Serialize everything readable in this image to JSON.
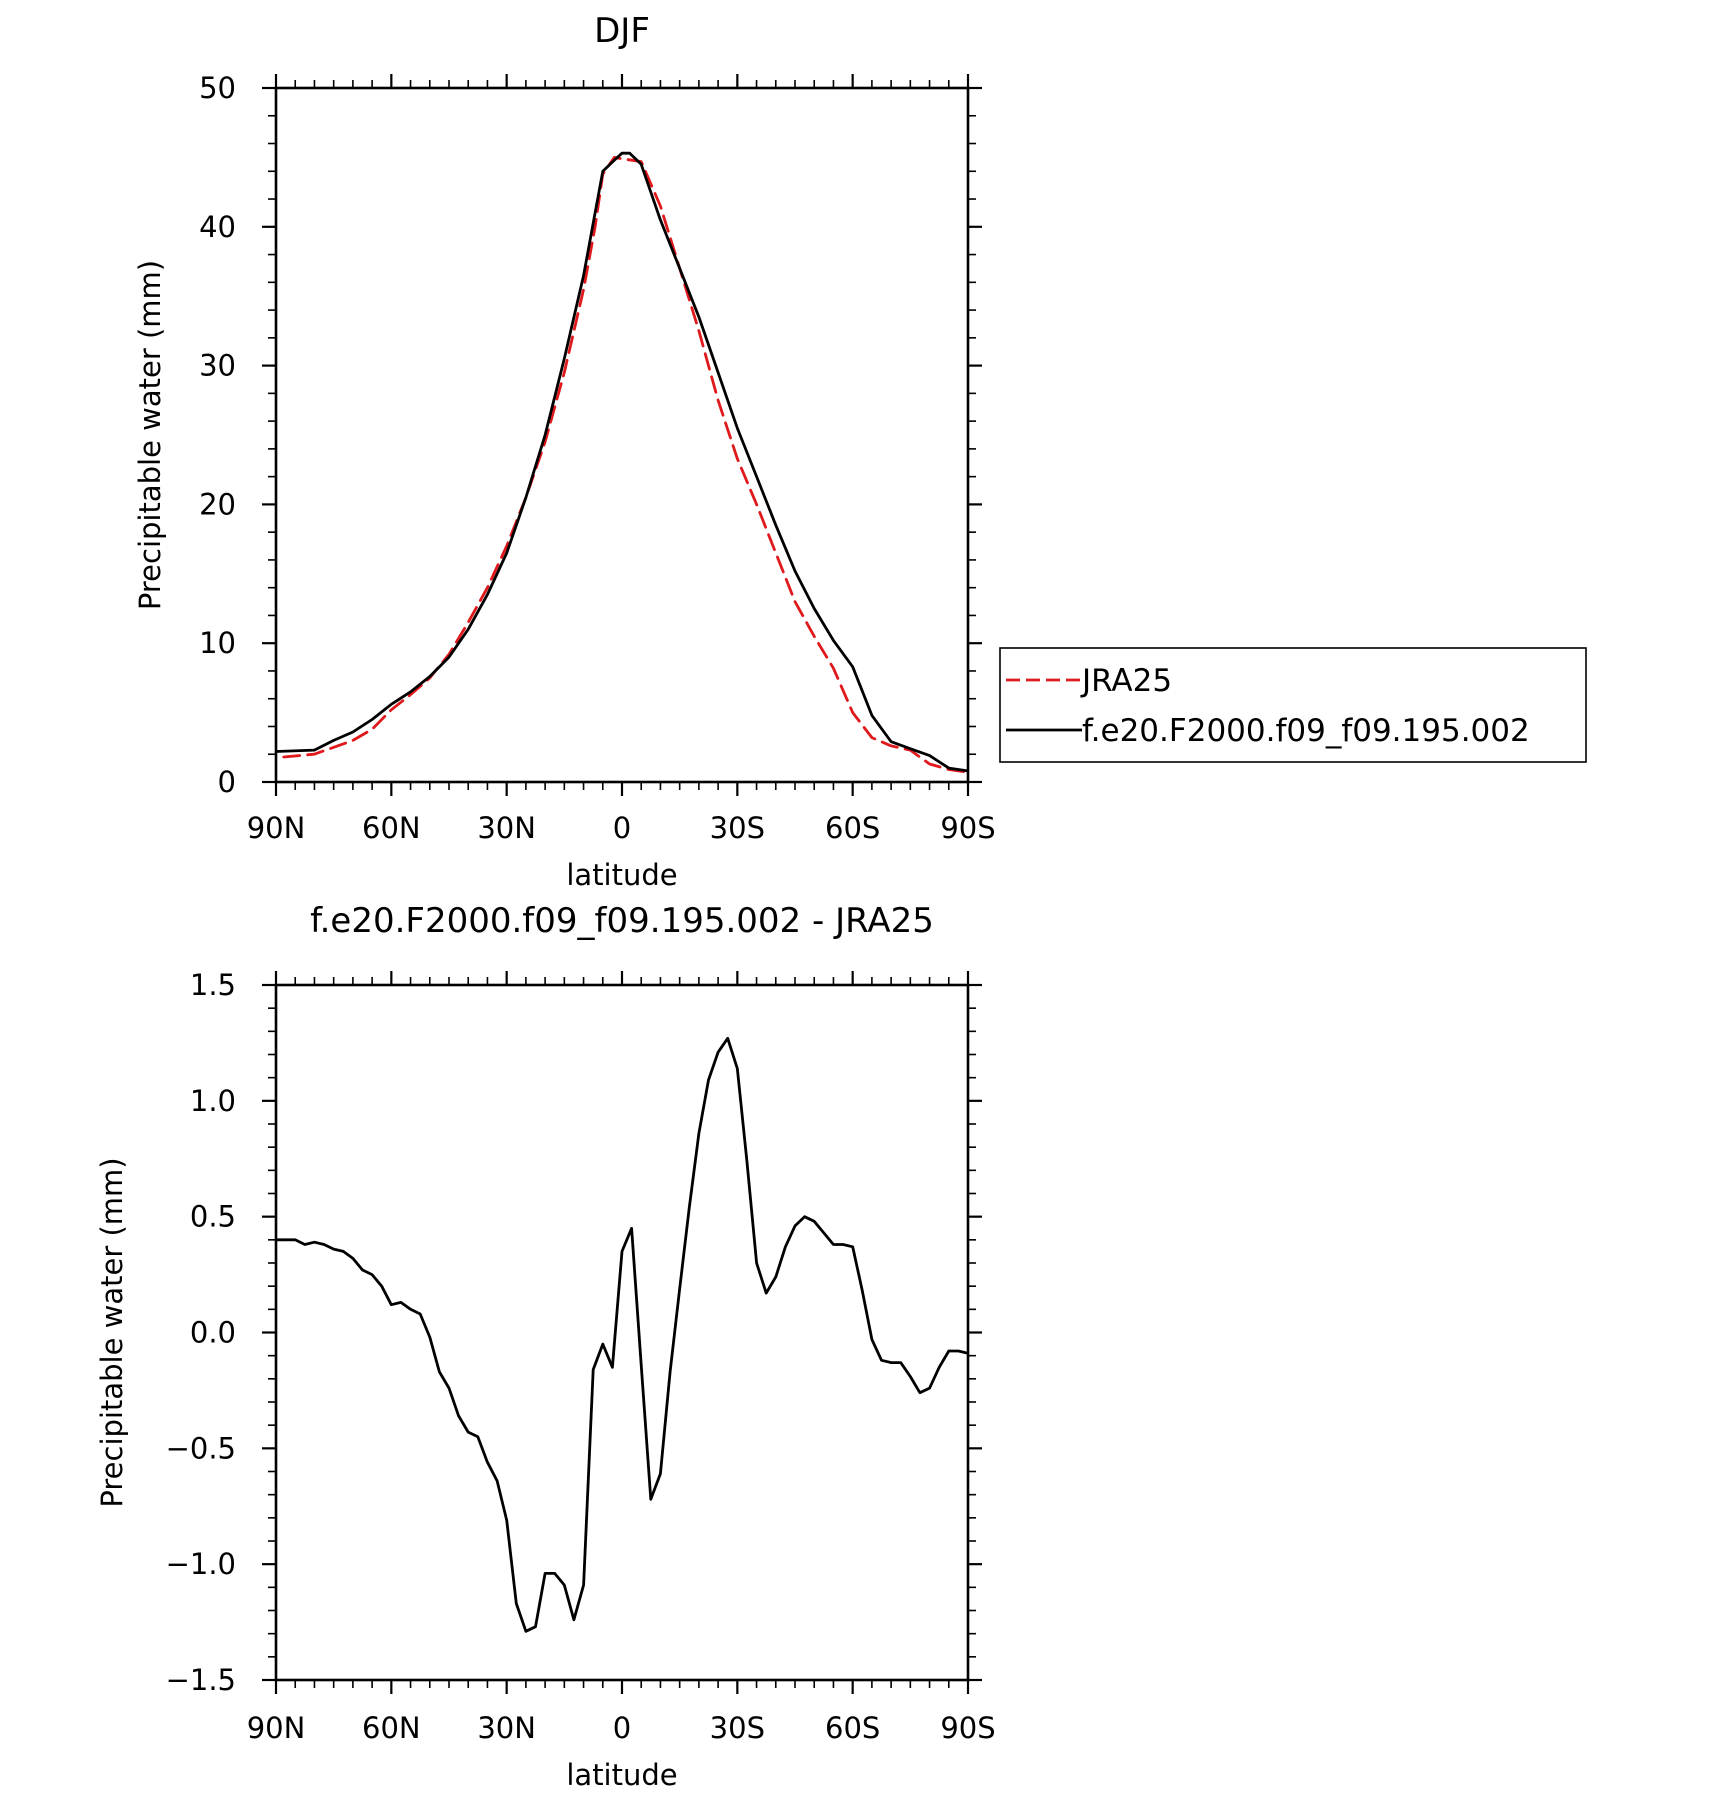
{
  "chart_data": [
    {
      "type": "line",
      "title": "DJF",
      "xlabel": "latitude",
      "ylabel": "Precipitable water (mm)",
      "xlim": [
        90,
        -90
      ],
      "ylim": [
        0,
        50
      ],
      "xticks": [
        90,
        60,
        30,
        0,
        -30,
        -60,
        -90
      ],
      "xtick_labels": [
        "90N",
        "60N",
        "30N",
        "0",
        "30S",
        "60S",
        "90S"
      ],
      "yticks": [
        0,
        10,
        20,
        30,
        40,
        50
      ],
      "ytick_labels": [
        "0",
        "10",
        "20",
        "30",
        "40",
        "50"
      ],
      "grid": false,
      "legend": {
        "placement": "right",
        "entries": [
          "JRA25",
          "f.e20.F2000.f09_f09.195.002"
        ]
      },
      "series": [
        {
          "name": "JRA25",
          "color": "#e0191c",
          "dash": "dashed",
          "x": [
            88,
            80,
            75,
            70,
            65,
            60,
            55,
            50,
            45,
            40,
            35,
            30,
            25,
            20,
            15,
            10,
            7,
            5,
            2,
            0,
            -5,
            -10,
            -15,
            -20,
            -25,
            -30,
            -35,
            -40,
            -45,
            -50,
            -55,
            -60,
            -65,
            -70,
            -75,
            -80,
            -85,
            -90
          ],
          "values": [
            1.8,
            2.0,
            2.5,
            3.0,
            3.8,
            5.2,
            6.3,
            7.5,
            9.2,
            11.5,
            14.0,
            17.0,
            20.5,
            24.5,
            29.5,
            35.5,
            40.0,
            43.8,
            45.0,
            44.9,
            44.7,
            41.5,
            37.0,
            32.5,
            27.5,
            23.3,
            20.0,
            16.5,
            13.0,
            10.5,
            8.2,
            5.0,
            3.2,
            2.6,
            2.3,
            1.3,
            0.9,
            0.7
          ]
        },
        {
          "name": "f.e20.F2000.f09_f09.195.002",
          "color": "#000000",
          "dash": "solid",
          "x": [
            90,
            80,
            75,
            70,
            65,
            60,
            55,
            50,
            45,
            40,
            35,
            30,
            25,
            20,
            15,
            10,
            7,
            5,
            2,
            0,
            -2,
            -5,
            -10,
            -15,
            -20,
            -25,
            -30,
            -35,
            -40,
            -45,
            -50,
            -55,
            -60,
            -65,
            -70,
            -75,
            -80,
            -85,
            -90
          ],
          "values": [
            2.2,
            2.3,
            3.0,
            3.6,
            4.5,
            5.6,
            6.5,
            7.6,
            9.0,
            11.0,
            13.5,
            16.5,
            20.5,
            25.0,
            30.5,
            36.5,
            41.0,
            44.0,
            44.8,
            45.3,
            45.3,
            44.5,
            40.5,
            37.0,
            33.5,
            29.5,
            25.5,
            22.0,
            18.5,
            15.2,
            12.5,
            10.2,
            8.3,
            4.8,
            2.9,
            2.4,
            1.9,
            1.0,
            0.8
          ]
        }
      ]
    },
    {
      "type": "line",
      "title": "f.e20.F2000.f09_f09.195.002 - JRA25",
      "xlabel": "latitude",
      "ylabel": "Precipitable water (mm)",
      "xlim": [
        90,
        -90
      ],
      "ylim": [
        -1.5,
        1.5
      ],
      "xticks": [
        90,
        60,
        30,
        0,
        -30,
        -60,
        -90
      ],
      "xtick_labels": [
        "90N",
        "60N",
        "30N",
        "0",
        "30S",
        "60S",
        "90S"
      ],
      "yticks": [
        -1.5,
        -1.0,
        -0.5,
        0.0,
        0.5,
        1.0,
        1.5
      ],
      "ytick_labels": [
        "−1.5",
        "−1.0",
        "−0.5",
        "0.0",
        "0.5",
        "1.0",
        "1.5"
      ],
      "grid": false,
      "series": [
        {
          "color": "#000000",
          "dash": "solid",
          "x": [
            90,
            85,
            82.5,
            80,
            77.5,
            75,
            72.5,
            70,
            67.5,
            65,
            62.5,
            60,
            57.5,
            55,
            52.5,
            50,
            47.5,
            45,
            42.5,
            40,
            37.5,
            35,
            32.5,
            30,
            27.5,
            25,
            22.5,
            20,
            17.5,
            15,
            12.5,
            10,
            7.5,
            5,
            2.5,
            0,
            -2.5,
            -5,
            -7.5,
            -10,
            -12.5,
            -15,
            -17.5,
            -20,
            -22.5,
            -25,
            -27.5,
            -30,
            -32.5,
            -35,
            -37.5,
            -40,
            -42.5,
            -45,
            -47.5,
            -50,
            -52.5,
            -55,
            -57.5,
            -60,
            -62.5,
            -65,
            -67.5,
            -70,
            -72.5,
            -75,
            -77.5,
            -80,
            -82.5,
            -85,
            -87.5,
            -90
          ],
          "values": [
            0.4,
            0.4,
            0.38,
            0.39,
            0.38,
            0.36,
            0.35,
            0.32,
            0.27,
            0.25,
            0.2,
            0.12,
            0.13,
            0.1,
            0.08,
            -0.02,
            -0.17,
            -0.24,
            -0.36,
            -0.43,
            -0.45,
            -0.56,
            -0.64,
            -0.81,
            -1.17,
            -1.29,
            -1.27,
            -1.04,
            -1.04,
            -1.09,
            -1.24,
            -1.09,
            -0.16,
            -0.05,
            -0.15,
            0.35,
            0.45,
            -0.14,
            -0.72,
            -0.61,
            -0.17,
            0.19,
            0.54,
            0.86,
            1.09,
            1.21,
            1.27,
            1.14,
            0.74,
            0.3,
            0.17,
            0.24,
            0.37,
            0.46,
            0.5,
            0.48,
            0.43,
            0.38,
            0.38,
            0.37,
            0.18,
            -0.03,
            -0.12,
            -0.13,
            -0.13,
            -0.19,
            -0.26,
            -0.24,
            -0.15,
            -0.08,
            -0.08,
            -0.09
          ]
        }
      ]
    }
  ]
}
